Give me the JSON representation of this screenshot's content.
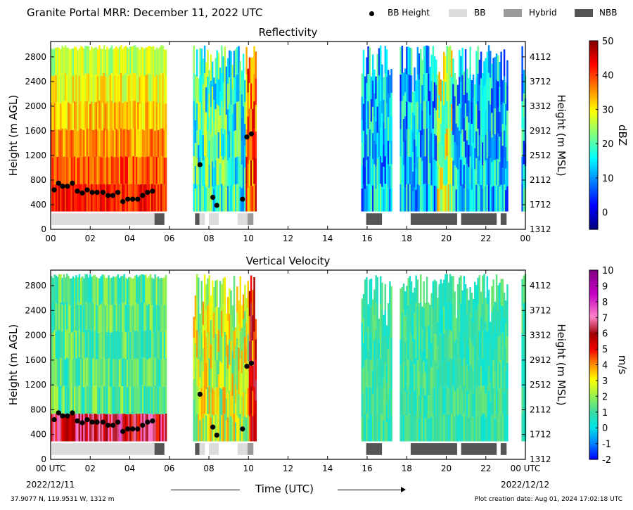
{
  "header": {
    "title": "Granite Portal MRR:  December 11, 2022 UTC"
  },
  "legend": [
    {
      "label": "BB Height",
      "kind": "dot",
      "color": "#000000"
    },
    {
      "label": "BB",
      "kind": "box",
      "color": "#dcdcdc"
    },
    {
      "label": "Hybrid",
      "kind": "box",
      "color": "#9a9a9a"
    },
    {
      "label": "NBB",
      "kind": "box",
      "color": "#555555"
    }
  ],
  "footer": {
    "location": "37.9077 N, 119.9531 W, 1312 m",
    "created": "Plot creation date: Aug 01, 2024 17:02:18 UTC",
    "date_start": "2022/12/11",
    "date_end": "2022/12/12",
    "xlabel": "Time (UTC)"
  },
  "chart_data": [
    {
      "type": "heatmap",
      "title": "Reflectivity",
      "ylabel": "Height (m AGL)",
      "y2label": "Height (m MSL)",
      "ylim": [
        0,
        3050
      ],
      "xlim": [
        0,
        24
      ],
      "yticks": [
        0,
        400,
        800,
        1200,
        1600,
        2000,
        2400,
        2800
      ],
      "y2ticks": [
        1312,
        1712,
        2112,
        2512,
        2912,
        3312,
        3712,
        4112
      ],
      "xticks": [
        "00",
        "02",
        "04",
        "06",
        "08",
        "10",
        "12",
        "14",
        "16",
        "18",
        "20",
        "22",
        "00"
      ],
      "colorbar": {
        "label": "dBZ",
        "min": -5,
        "max": 50,
        "ticks": [
          0,
          10,
          20,
          30,
          40,
          50
        ],
        "colors": [
          "#00008f",
          "#0000ff",
          "#0080ff",
          "#00ffff",
          "#80ff80",
          "#ffff00",
          "#ff8000",
          "#ff0000",
          "#800000"
        ]
      },
      "colormap": "jet"
    },
    {
      "type": "heatmap",
      "title": "Vertical Velocity",
      "ylabel": "Height (m AGL)",
      "y2label": "Height (m MSL)",
      "ylim": [
        0,
        3050
      ],
      "xlim": [
        0,
        24
      ],
      "yticks": [
        0,
        400,
        800,
        1200,
        1600,
        2000,
        2400,
        2800
      ],
      "y2ticks": [
        1312,
        1712,
        2112,
        2512,
        2912,
        3312,
        3712,
        4112
      ],
      "xticks": [
        "00 UTC",
        "02",
        "04",
        "06",
        "08",
        "10",
        "12",
        "14",
        "16",
        "18",
        "20",
        "22",
        "00 UTC"
      ],
      "colorbar": {
        "label": "m/s",
        "min": -2,
        "max": 10,
        "ticks": [
          -2,
          -1,
          0,
          1,
          2,
          3,
          4,
          5,
          6,
          7,
          8,
          9,
          10
        ],
        "colors": [
          "#0000ff",
          "#0080ff",
          "#00ffff",
          "#80ff80",
          "#ffff00",
          "#ff8000",
          "#ff0000",
          "#a00000",
          "#ff80c0",
          "#c000c0",
          "#800080"
        ]
      },
      "colormap": "velocity"
    }
  ],
  "bb_height_points": [
    [
      0.18,
      640
    ],
    [
      0.4,
      750
    ],
    [
      0.6,
      700
    ],
    [
      0.85,
      700
    ],
    [
      1.1,
      750
    ],
    [
      1.35,
      620
    ],
    [
      1.6,
      590
    ],
    [
      1.85,
      640
    ],
    [
      2.1,
      600
    ],
    [
      2.35,
      600
    ],
    [
      2.65,
      600
    ],
    [
      2.9,
      550
    ],
    [
      3.15,
      550
    ],
    [
      3.4,
      600
    ],
    [
      3.65,
      450
    ],
    [
      3.9,
      490
    ],
    [
      4.15,
      490
    ],
    [
      4.4,
      490
    ],
    [
      4.65,
      550
    ],
    [
      4.9,
      600
    ],
    [
      5.15,
      620
    ],
    [
      7.55,
      1050
    ],
    [
      8.2,
      520
    ],
    [
      8.4,
      390
    ],
    [
      9.7,
      490
    ],
    [
      9.92,
      1500
    ],
    [
      10.15,
      1550
    ]
  ],
  "bb_type_strip": [
    {
      "start": 0.05,
      "end": 5.25,
      "type": "BB"
    },
    {
      "start": 5.25,
      "end": 5.75,
      "type": "NBB"
    },
    {
      "start": 7.3,
      "end": 7.52,
      "type": "NBB"
    },
    {
      "start": 7.52,
      "end": 7.8,
      "type": "BB"
    },
    {
      "start": 8.0,
      "end": 8.5,
      "type": "BB"
    },
    {
      "start": 9.45,
      "end": 9.95,
      "type": "BB"
    },
    {
      "start": 9.95,
      "end": 10.25,
      "type": "Hybrid"
    },
    {
      "start": 15.95,
      "end": 16.75,
      "type": "NBB"
    },
    {
      "start": 18.2,
      "end": 20.55,
      "type": "NBB"
    },
    {
      "start": 20.75,
      "end": 22.55,
      "type": "NBB"
    },
    {
      "start": 22.75,
      "end": 23.05,
      "type": "NBB"
    }
  ],
  "data_periods": [
    [
      0.0,
      5.8
    ],
    [
      7.2,
      10.35
    ],
    [
      15.7,
      17.2
    ],
    [
      17.65,
      23.1
    ],
    [
      23.8,
      24.0
    ]
  ]
}
